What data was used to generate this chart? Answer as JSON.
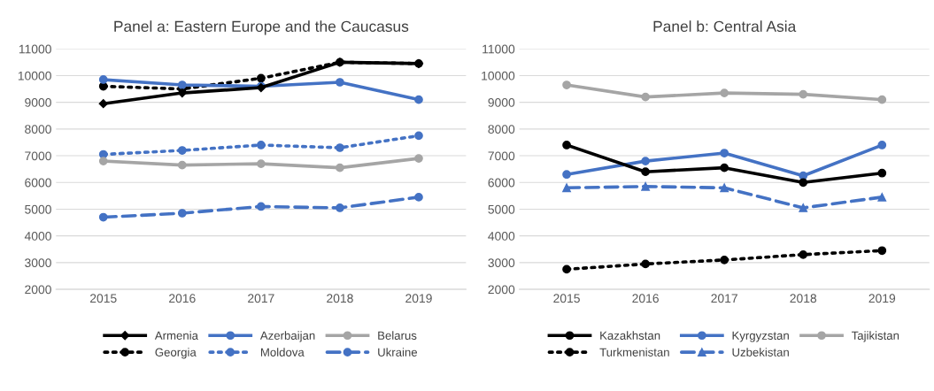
{
  "chart_data": [
    {
      "type": "line",
      "title": "Panel a: Eastern Europe and the Caucasus",
      "categories": [
        "2015",
        "2016",
        "2017",
        "2018",
        "2019"
      ],
      "ylim": [
        2000,
        11000
      ],
      "yticks": [
        2000,
        3000,
        4000,
        5000,
        6000,
        7000,
        8000,
        9000,
        10000,
        11000
      ],
      "grid": "y",
      "legend": "bottom",
      "series": [
        {
          "name": "Armenia",
          "color": "#000000",
          "marker": "diamond",
          "line_style": "solid",
          "values": [
            8950,
            9350,
            9550,
            10500,
            10450
          ]
        },
        {
          "name": "Azerbaijan",
          "color": "#4472c4",
          "marker": "circle",
          "line_style": "solid",
          "values": [
            9850,
            9650,
            9600,
            9750,
            9100
          ]
        },
        {
          "name": "Belarus",
          "color": "#a5a5a5",
          "marker": "circle",
          "line_style": "solid",
          "values": [
            6800,
            6650,
            6700,
            6550,
            6900
          ]
        },
        {
          "name": "Georgia",
          "color": "#000000",
          "marker": "circle",
          "line_style": "dotted",
          "values": [
            9600,
            9500,
            9900,
            10500,
            10450
          ]
        },
        {
          "name": "Moldova",
          "color": "#4472c4",
          "marker": "circle",
          "line_style": "dotted",
          "values": [
            7050,
            7200,
            7400,
            7300,
            7750
          ]
        },
        {
          "name": "Ukraine",
          "color": "#4472c4",
          "marker": "circle",
          "line_style": "dashed",
          "values": [
            4700,
            4850,
            5100,
            5050,
            5450
          ]
        }
      ]
    },
    {
      "type": "line",
      "title": "Panel b: Central Asia",
      "categories": [
        "2015",
        "2016",
        "2017",
        "2018",
        "2019"
      ],
      "ylim": [
        2000,
        11000
      ],
      "yticks": [
        2000,
        3000,
        4000,
        5000,
        6000,
        7000,
        8000,
        9000,
        10000,
        11000
      ],
      "grid": "y",
      "legend": "bottom",
      "series": [
        {
          "name": "Kazakhstan",
          "color": "#000000",
          "marker": "circle",
          "line_style": "solid",
          "values": [
            7400,
            6400,
            6550,
            6000,
            6350
          ]
        },
        {
          "name": "Kyrgyzstan",
          "color": "#4472c4",
          "marker": "circle",
          "line_style": "solid",
          "values": [
            6300,
            6800,
            7100,
            6250,
            7400
          ]
        },
        {
          "name": "Tajikistan",
          "color": "#a5a5a5",
          "marker": "circle",
          "line_style": "solid",
          "values": [
            9650,
            9200,
            9350,
            9300,
            9100
          ]
        },
        {
          "name": "Turkmenistan",
          "color": "#000000",
          "marker": "circle",
          "line_style": "dotted",
          "values": [
            2750,
            2950,
            3100,
            3300,
            3450
          ]
        },
        {
          "name": "Uzbekistan",
          "color": "#4472c4",
          "marker": "triangle",
          "line_style": "dashed",
          "values": [
            5800,
            5850,
            5800,
            5050,
            5450
          ]
        }
      ]
    }
  ]
}
